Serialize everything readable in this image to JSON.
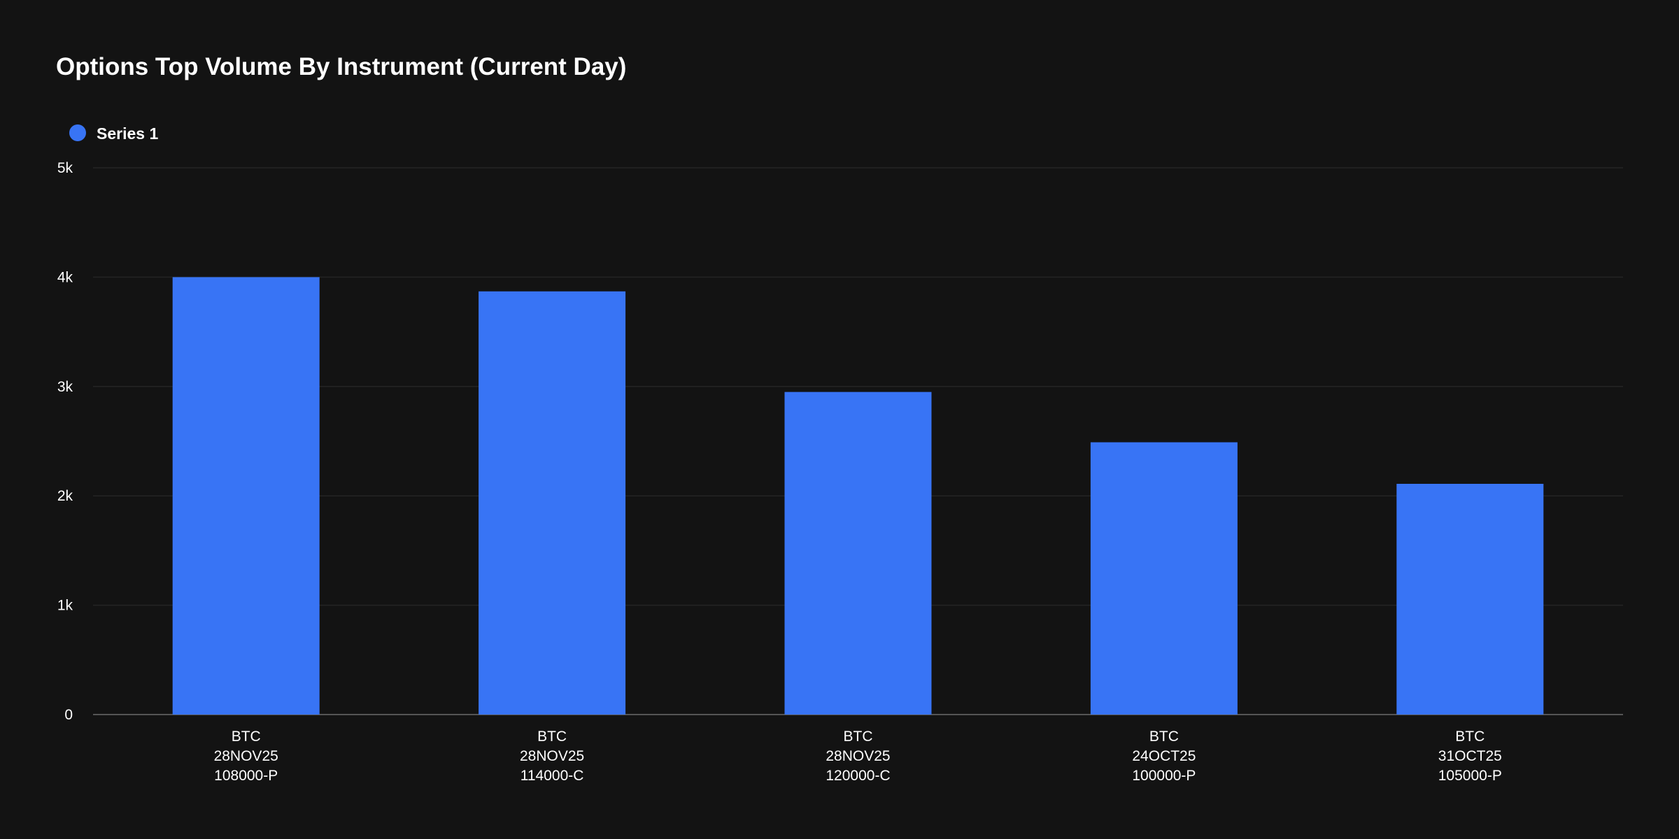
{
  "colors": {
    "background": "#131313",
    "bar": "#3874f5",
    "gridline": "#242424",
    "baseline": "#555555",
    "text": "#ffffff"
  },
  "chart_data": {
    "type": "bar",
    "title": "Options Top Volume By Instrument (Current Day)",
    "xlabel": "",
    "ylabel": "",
    "ylim": [
      0,
      5000
    ],
    "yticks": [
      0,
      1000,
      2000,
      3000,
      4000,
      5000
    ],
    "ytick_labels": [
      "0",
      "1k",
      "2k",
      "3k",
      "4k",
      "5k"
    ],
    "grid": true,
    "legend_position": "top-left",
    "categories": [
      [
        "BTC",
        "28NOV25",
        "108000-P"
      ],
      [
        "BTC",
        "28NOV25",
        "114000-C"
      ],
      [
        "BTC",
        "28NOV25",
        "120000-C"
      ],
      [
        "BTC",
        "24OCT25",
        "100000-P"
      ],
      [
        "BTC",
        "31OCT25",
        "105000-P"
      ]
    ],
    "series": [
      {
        "name": "Series 1",
        "color": "#3874f5",
        "values": [
          4000,
          3870,
          2950,
          2490,
          2110
        ]
      }
    ]
  }
}
